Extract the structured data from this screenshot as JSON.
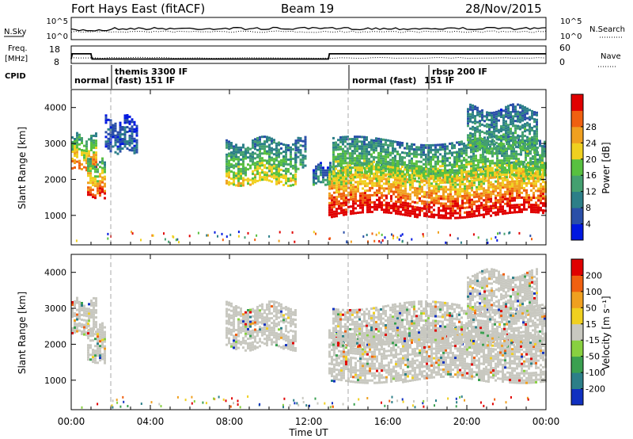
{
  "header": {
    "station": "Fort Hays East (fitACF)",
    "beam": "Beam 19",
    "date": "28/Nov/2015"
  },
  "top_panels": {
    "nsky_label": "N.Sky",
    "nsky_ticks": [
      "10^5",
      "10^0"
    ],
    "nsearch_label": "N.Search",
    "nsearch_ticks": [
      "10^5",
      "10^0"
    ],
    "freq_label_1": "Freq.",
    "freq_label_2": "[MHz]",
    "freq_ticks": [
      "18",
      "8"
    ],
    "nave_label": "Nave",
    "nave_ticks": [
      "60",
      "0"
    ],
    "cpid_label": "CPID",
    "cpid_segments": [
      {
        "line1": "normal",
        "line2": ""
      },
      {
        "line1": "themis 3300 IF",
        "line2": "(fast) 151 IF"
      },
      {
        "line1": "normal (fast)",
        "line2": "151 IF"
      },
      {
        "line1": "rbsp 200 IF",
        "line2": ""
      }
    ],
    "freq_series": {
      "x_hours": [
        0,
        0.05,
        1.0,
        1.05,
        13.0,
        13.05,
        24
      ],
      "mhz": [
        10.5,
        13.5,
        13.5,
        10.5,
        10.5,
        13.5,
        13.5
      ]
    }
  },
  "chart_data": [
    {
      "type": "heatmap",
      "name": "power",
      "ylabel": "Slant Range [km]",
      "yticks": [
        "1000",
        "2000",
        "3000",
        "4000"
      ],
      "ylim": [
        180,
        4500
      ],
      "xlim": [
        0,
        24
      ],
      "colorbar_label": "Power [dB]",
      "colorbar_ticks": [
        "4",
        "8",
        "12",
        "16",
        "20",
        "24",
        "28"
      ],
      "colorbar_colors": [
        "#0018e0",
        "#2a4fa8",
        "#2c7f88",
        "#44a070",
        "#58c040",
        "#f0d020",
        "#f0a020",
        "#f06010",
        "#e00000"
      ],
      "echo_regions": [
        {
          "x": [
            0,
            1.3
          ],
          "ymin": 2300,
          "ymax": 3200,
          "level": 0.75
        },
        {
          "x": [
            0.8,
            1.7
          ],
          "ymin": 1500,
          "ymax": 2500,
          "level": 0.85
        },
        {
          "x": [
            1.7,
            3.3
          ],
          "ymin": 2800,
          "ymax": 3700,
          "level": 0.15
        },
        {
          "x": [
            7.8,
            11.3
          ],
          "ymin": 1900,
          "ymax": 3100,
          "level": 0.55
        },
        {
          "x": [
            11.3,
            11.8
          ],
          "ymin": 2300,
          "ymax": 3200,
          "level": 0.35
        },
        {
          "x": [
            12.2,
            13.1
          ],
          "ymin": 1900,
          "ymax": 2400,
          "level": 0.3
        },
        {
          "x": [
            13.0,
            24
          ],
          "ymin": 1000,
          "ymax": 2400,
          "level": 0.95
        },
        {
          "x": [
            13.2,
            24
          ],
          "ymin": 2000,
          "ymax": 3100,
          "level": 0.55
        },
        {
          "x": [
            20.0,
            23.5
          ],
          "ymin": 2800,
          "ymax": 4000,
          "level": 0.4
        }
      ]
    },
    {
      "type": "heatmap",
      "name": "velocity",
      "ylabel": "Slant Range [km]",
      "yticks": [
        "1000",
        "2000",
        "3000",
        "4000"
      ],
      "ylim": [
        180,
        4500
      ],
      "xlim": [
        0,
        24
      ],
      "xticks": [
        "00:00",
        "04:00",
        "08:00",
        "12:00",
        "16:00",
        "20:00",
        "00:00"
      ],
      "xlabel": "Time UT",
      "colorbar_label": "Velocity [m s⁻¹]",
      "colorbar_ticks": [
        "200",
        "100",
        "50",
        "15",
        "-15",
        "-50",
        "-100",
        "-200"
      ],
      "colorbar_colors": [
        "#1030c0",
        "#2c7f88",
        "#3aa050",
        "#88d040",
        "#c8c8c0",
        "#f0d020",
        "#f0a020",
        "#f06010",
        "#e00000"
      ],
      "echo_regions": [
        {
          "x": [
            0,
            1.3
          ],
          "ymin": 2300,
          "ymax": 3200,
          "level": 0.5
        },
        {
          "x": [
            0.8,
            1.7
          ],
          "ymin": 1500,
          "ymax": 2500,
          "level": 0.5
        },
        {
          "x": [
            7.8,
            11.3
          ],
          "ymin": 1900,
          "ymax": 3100,
          "level": 0.5
        },
        {
          "x": [
            13.0,
            24
          ],
          "ymin": 1000,
          "ymax": 2400,
          "level": 0.5
        },
        {
          "x": [
            13.2,
            24
          ],
          "ymin": 2000,
          "ymax": 3100,
          "level": 0.5
        },
        {
          "x": [
            20.0,
            23.5
          ],
          "ymin": 2800,
          "ymax": 4000,
          "level": 0.5
        }
      ]
    }
  ]
}
